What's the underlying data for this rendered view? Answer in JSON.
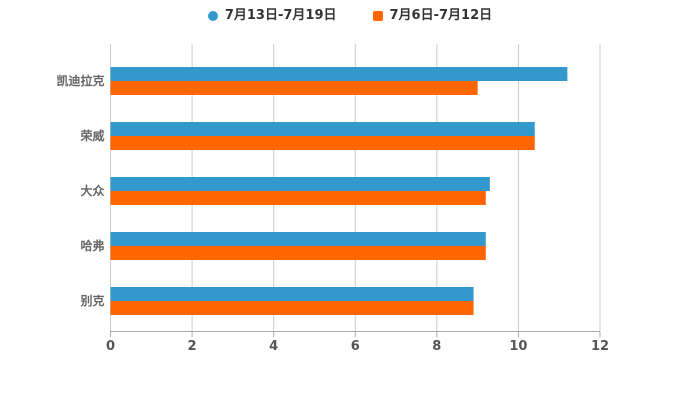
{
  "chart_data": {
    "type": "bar",
    "orientation": "horizontal",
    "title": "",
    "xlabel": "",
    "ylabel": "",
    "categories": [
      "凯迪拉克",
      "荣威",
      "大众",
      "哈弗",
      "别克"
    ],
    "series": [
      {
        "name": "7月13日-7月19日",
        "color": "#3399cc",
        "marker": "circle",
        "values": [
          11.2,
          10.4,
          9.3,
          9.2,
          8.9
        ]
      },
      {
        "name": "7月6日-7月12日",
        "color": "#ff6600",
        "marker": "square",
        "values": [
          9.0,
          10.4,
          9.2,
          9.2,
          8.9
        ]
      }
    ],
    "xlim": [
      0,
      12
    ],
    "xticks": [
      0,
      2,
      4,
      6,
      8,
      10,
      12
    ],
    "grid": true,
    "legend_position": "top",
    "colors": {
      "grid_line": "#cccccc",
      "axis_line": "#aaaaaa",
      "tick_label": "#555555",
      "category_label": "#666666",
      "legend_text": "#333333",
      "background": "#ffffff"
    }
  }
}
